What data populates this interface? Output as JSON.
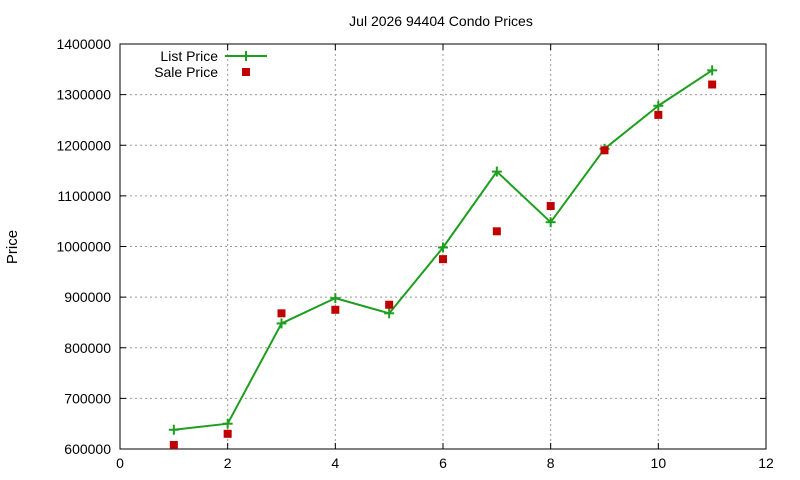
{
  "chart_data": {
    "type": "line",
    "title": "Jul 2026 94404 Condo Prices",
    "xlabel": "",
    "ylabel": "Price",
    "xlim": [
      0,
      12
    ],
    "ylim": [
      600000,
      1400000
    ],
    "x_ticks": [
      0,
      2,
      4,
      6,
      8,
      10,
      12
    ],
    "y_ticks": [
      600000,
      700000,
      800000,
      900000,
      1000000,
      1100000,
      1200000,
      1300000,
      1400000
    ],
    "grid": true,
    "legend_position": "top-left",
    "series": [
      {
        "name": "List Price",
        "style": "line-with-plus-markers",
        "color": "#1e9e1e",
        "x": [
          1,
          2,
          3,
          4,
          5,
          6,
          7,
          8,
          9,
          10,
          11
        ],
        "values": [
          638000,
          650000,
          848000,
          898000,
          868000,
          998000,
          1148000,
          1048000,
          1193000,
          1278000,
          1348000
        ]
      },
      {
        "name": "Sale Price",
        "style": "square-markers",
        "color": "#c00000",
        "x": [
          1,
          2,
          3,
          4,
          5,
          6,
          7,
          8,
          9,
          10,
          11
        ],
        "values": [
          608000,
          630000,
          868000,
          875000,
          885000,
          975000,
          1030000,
          1080000,
          1190000,
          1260000,
          1320000
        ]
      }
    ]
  }
}
